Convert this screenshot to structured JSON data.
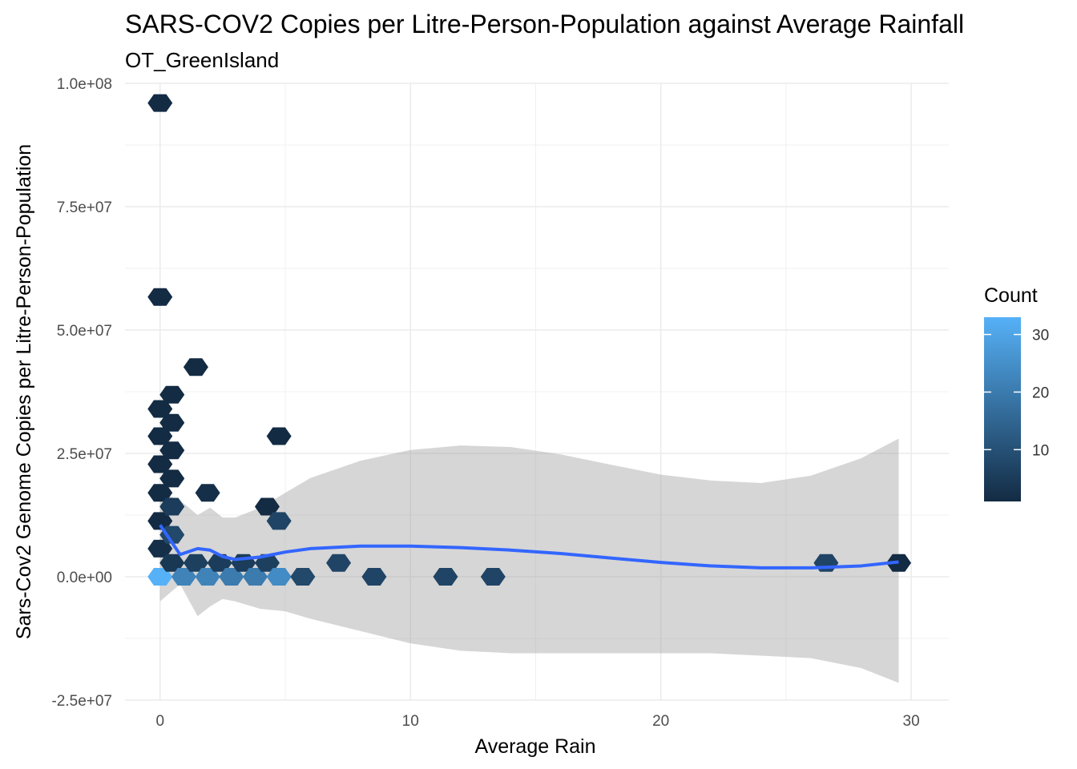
{
  "chart_data": {
    "type": "hexbin",
    "title": "SARS-COV2 Copies per Litre-Person-Population against Average Rainfall",
    "subtitle": "OT_GreenIsland",
    "xlabel": "Average Rain",
    "ylabel": "Sars-Cov2 Genome Copies per Litre-Person-Population",
    "xlim": [
      -1.4,
      31.5
    ],
    "ylim": [
      -25000000,
      100000000
    ],
    "x_ticks": [
      0,
      10,
      20,
      30
    ],
    "x_tick_labels": [
      "0",
      "10",
      "20",
      "30"
    ],
    "y_ticks": [
      -25000000,
      0,
      25000000,
      50000000,
      75000000,
      100000000
    ],
    "y_tick_labels": [
      "-2.5e+07",
      "0.0e+00",
      "2.5e+07",
      "5.0e+07",
      "7.5e+07",
      "1.0e+08"
    ],
    "grid": true,
    "legend": {
      "title": "Count",
      "position": "right",
      "range": [
        1,
        33
      ],
      "ticks": [
        10,
        20,
        30
      ],
      "tick_labels": [
        "10",
        "20",
        "30"
      ],
      "color_low": "#132B43",
      "color_high": "#56B1F7"
    },
    "hexbins": [
      {
        "x": 0,
        "y": 96000000,
        "count": 1
      },
      {
        "x": 0,
        "y": 56700000,
        "count": 1
      },
      {
        "x": 0,
        "y": 34000000,
        "count": 1
      },
      {
        "x": 0,
        "y": 28500000,
        "count": 1
      },
      {
        "x": 0,
        "y": 22800000,
        "count": 1
      },
      {
        "x": 0,
        "y": 17000000,
        "count": 1
      },
      {
        "x": 0,
        "y": 11300000,
        "count": 1
      },
      {
        "x": 0,
        "y": 5700000,
        "count": 2
      },
      {
        "x": 0,
        "y": 0,
        "count": 33
      },
      {
        "x": 0.48,
        "y": 36900000,
        "count": 1
      },
      {
        "x": 0.48,
        "y": 31200000,
        "count": 1
      },
      {
        "x": 0.48,
        "y": 25600000,
        "count": 1
      },
      {
        "x": 0.48,
        "y": 19900000,
        "count": 1
      },
      {
        "x": 0.48,
        "y": 14200000,
        "count": 5
      },
      {
        "x": 0.48,
        "y": 8500000,
        "count": 8
      },
      {
        "x": 0.48,
        "y": 2800000,
        "count": 4
      },
      {
        "x": 0.95,
        "y": 0,
        "count": 22
      },
      {
        "x": 1.43,
        "y": 42500000,
        "count": 1
      },
      {
        "x": 1.43,
        "y": 2800000,
        "count": 6
      },
      {
        "x": 1.9,
        "y": 17000000,
        "count": 2
      },
      {
        "x": 1.9,
        "y": 0,
        "count": 22
      },
      {
        "x": 2.38,
        "y": 2800000,
        "count": 5
      },
      {
        "x": 2.85,
        "y": 0,
        "count": 20
      },
      {
        "x": 3.33,
        "y": 2800000,
        "count": 5
      },
      {
        "x": 3.8,
        "y": 0,
        "count": 20
      },
      {
        "x": 4.28,
        "y": 14200000,
        "count": 1
      },
      {
        "x": 4.28,
        "y": 2800000,
        "count": 6
      },
      {
        "x": 4.75,
        "y": 28500000,
        "count": 1
      },
      {
        "x": 4.75,
        "y": 11300000,
        "count": 7
      },
      {
        "x": 4.75,
        "y": 0,
        "count": 24
      },
      {
        "x": 5.7,
        "y": 0,
        "count": 8
      },
      {
        "x": 7.13,
        "y": 2800000,
        "count": 7
      },
      {
        "x": 8.55,
        "y": 0,
        "count": 7
      },
      {
        "x": 11.4,
        "y": 0,
        "count": 7
      },
      {
        "x": 13.3,
        "y": 0,
        "count": 7
      },
      {
        "x": 26.6,
        "y": 2800000,
        "count": 7
      },
      {
        "x": 29.5,
        "y": 2800000,
        "count": 1
      }
    ],
    "smooth_line": {
      "color": "#3366FF",
      "x": [
        0,
        0.8,
        1.5,
        2.0,
        2.5,
        3.0,
        4.0,
        5.0,
        6.0,
        8.0,
        10.0,
        12.0,
        14.0,
        16.0,
        18.0,
        20.0,
        22.0,
        24.0,
        26.0,
        28.0,
        29.5
      ],
      "y": [
        10500000,
        4500000,
        5700000,
        5400000,
        4100000,
        3500000,
        4000000,
        5000000,
        5700000,
        6200000,
        6200000,
        5900000,
        5400000,
        4700000,
        3800000,
        2900000,
        2200000,
        1800000,
        1800000,
        2200000,
        3000000
      ],
      "ci_lower": [
        -5000000,
        -1500000,
        -8000000,
        -6000000,
        -4500000,
        -5000000,
        -6500000,
        -7000000,
        -8500000,
        -11000000,
        -13500000,
        -15000000,
        -15500000,
        -15500000,
        -15500000,
        -15500000,
        -15500000,
        -16000000,
        -16500000,
        -18500000,
        -21500000
      ],
      "ci_upper": [
        17000000,
        15500000,
        12500000,
        14000000,
        12000000,
        12000000,
        14000000,
        17000000,
        20000000,
        23500000,
        25700000,
        26600000,
        26300000,
        24800000,
        22700000,
        20700000,
        19500000,
        19000000,
        20500000,
        24000000,
        28000000
      ]
    }
  }
}
